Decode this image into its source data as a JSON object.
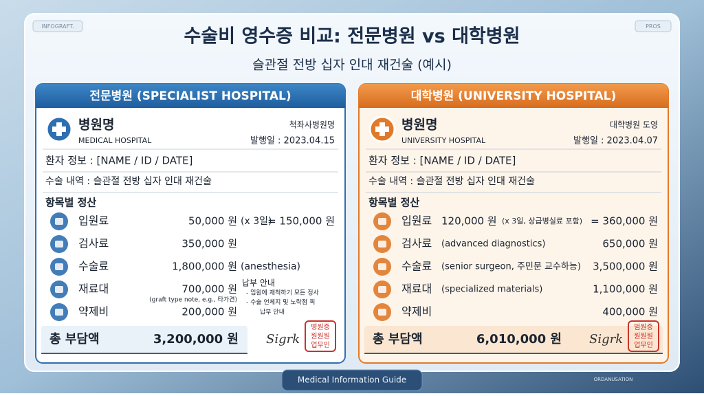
{
  "header": {
    "tag_left": "INFOGRAFT.",
    "tag_right": "PROS",
    "title": "수술비 영수증 비교: 전문병원 vs 대학병원",
    "subtitle": "슬관절 전방 십자 인대 재건술 (예시)"
  },
  "cards": [
    {
      "heading": "전문병원 (SPECIALIST HOSPITAL)",
      "hospital_name": "병원명",
      "hospital_sub": "MEDICAL HOSPITAL",
      "right_top": "척좌사병원명",
      "date": "발행일 : 2023.04.15",
      "patient": "환자 정보 : [NAME / ID / DATE]",
      "surgery": "수술 내역 : 슬관절 전방 십자 인대 재건술",
      "items_title": "항목별 정산",
      "items": [
        {
          "label": "입원료",
          "amount": "50,000 원",
          "note": "(x 3일)",
          "total": "= 150,000 원"
        },
        {
          "label": "검사료",
          "amount": "350,000 원"
        },
        {
          "label": "수술료",
          "amount": "1,800,000 원",
          "note": "(anesthesia)"
        },
        {
          "label": "재료대",
          "amount": "700,000 원",
          "note": "(graft type note, e.g., 타가견)"
        },
        {
          "label": "약제비",
          "amount": "200,000 원"
        }
      ],
      "payment_notes": [
        "납부 안내",
        "- 입원에 재척하기 모든 정사",
        "- 수술 언체지 및 노락점 픽",
        "납부 안내"
      ],
      "total_label": "총 부담액",
      "total": "3,200,000 원",
      "signature": "Sigrk",
      "stamp": [
        "병원증",
        "원원원",
        "업무인"
      ]
    },
    {
      "heading": "대학병원 (UNIVERSITY HOSPITAL)",
      "hospital_name": "병원명",
      "hospital_sub": "UNIVERSITY HOSPITAL",
      "right_top": "대학병원 도영",
      "date": "발행일 : 2023.04.07",
      "patient": "환자 정보 : [NAME / ID / DATE]",
      "surgery": "수술 내역 : 슬관절 전방 십자 인대 재건술",
      "items_title": "항목별 정산",
      "items": [
        {
          "label": "입원료",
          "amount": "120,000 원",
          "note": "(x 3일, 상급병실료 포함)",
          "total": "= 360,000 원"
        },
        {
          "label": "검사료",
          "note": "(advanced diagnostics)",
          "total": "650,000 원"
        },
        {
          "label": "수술료",
          "note": "(senior surgeon, 주민문 교수하능)",
          "total": "3,500,000 원"
        },
        {
          "label": "재료대",
          "note": "(specialized materials)",
          "total": "1,100,000 원"
        },
        {
          "label": "약제비",
          "total": "400,000 원"
        }
      ],
      "total_label": "총 부담액",
      "total": "6,010,000 원",
      "signature": "Sigrk",
      "stamp": [
        "범원증",
        "원원원",
        "업무인"
      ]
    }
  ],
  "footer": {
    "guide": "Medical Information Guide",
    "org": "ORDANUSATION"
  }
}
